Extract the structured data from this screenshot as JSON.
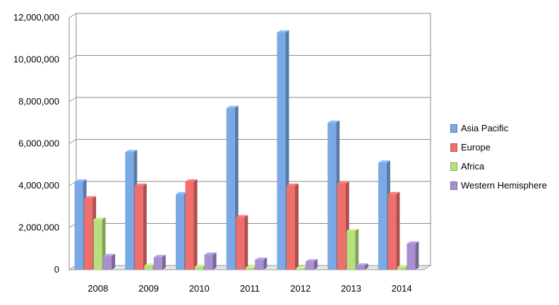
{
  "chart_data": {
    "type": "bar",
    "categories": [
      "2008",
      "2009",
      "2010",
      "2011",
      "2012",
      "2013",
      "2014"
    ],
    "series": [
      {
        "name": "Asia Pacific",
        "color": "#7aa9e6",
        "values": [
          4200000,
          5600000,
          3600000,
          7700000,
          11300000,
          7000000,
          5100000
        ]
      },
      {
        "name": "Europe",
        "color": "#ef6f6c",
        "values": [
          3400000,
          4000000,
          4200000,
          2500000,
          4000000,
          4100000,
          3600000
        ]
      },
      {
        "name": "Africa",
        "color": "#b7df7e",
        "values": [
          2400000,
          200000,
          150000,
          100000,
          80000,
          1850000,
          130000
        ]
      },
      {
        "name": "Western Hemisphere",
        "color": "#a88fd1",
        "values": [
          650000,
          600000,
          720000,
          480000,
          400000,
          200000,
          1250000
        ]
      }
    ],
    "yticks": [
      "0",
      "2,000,000",
      "4,000,000",
      "6,000,000",
      "8,000,000",
      "10,000,000",
      "12,000,000"
    ],
    "ylim": [
      0,
      12000000
    ],
    "grid": true,
    "legend": "right",
    "title": "",
    "xlabel": "",
    "ylabel": ""
  }
}
